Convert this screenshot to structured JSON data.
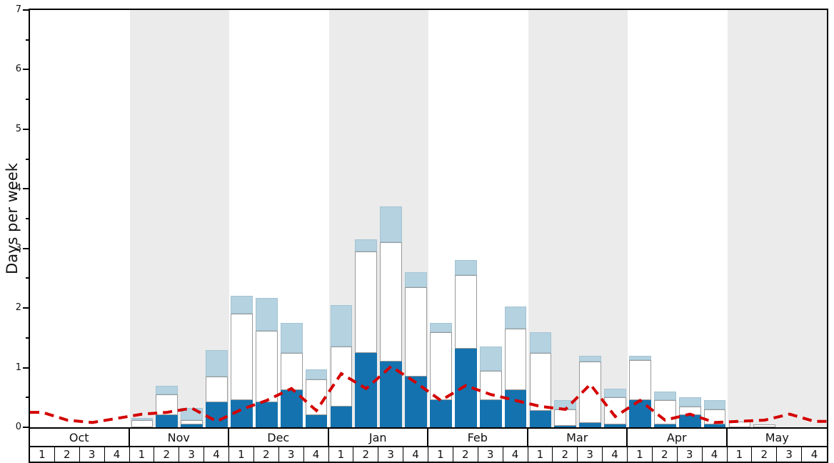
{
  "chart_data": {
    "type": "stacked-bar+line",
    "title": "",
    "ylabel": "Days per week",
    "ylim": [
      0,
      7
    ],
    "yticks": [
      0,
      1,
      2,
      3,
      4,
      5,
      6,
      7
    ],
    "grid": false,
    "months": [
      "Oct",
      "Nov",
      "Dec",
      "Jan",
      "Feb",
      "Mar",
      "Apr",
      "May"
    ],
    "weeks_per_month": 4,
    "week_labels": [
      "1",
      "2",
      "3",
      "4"
    ],
    "band_colors": [
      "#ffffff",
      "#ebebeb"
    ],
    "series": [
      {
        "name": "dark-blue-days",
        "color": "#1473af",
        "border": "#1473af",
        "values": [
          0,
          0,
          0,
          0,
          0,
          0.2,
          0.05,
          0.42,
          0.45,
          0.42,
          0.62,
          0.2,
          0.35,
          1.25,
          1.1,
          0.85,
          0.45,
          1.32,
          0.45,
          0.62,
          0.28,
          0.02,
          0.07,
          0.05,
          0.45,
          0.05,
          0.2,
          0.05,
          0,
          0,
          0,
          0
        ]
      },
      {
        "name": "white-days",
        "color": "#ffffff",
        "border": "#999999",
        "values": [
          0,
          0,
          0,
          0,
          0.12,
          0.35,
          0.07,
          0.43,
          1.45,
          1.2,
          0.63,
          0.6,
          1.0,
          1.7,
          2.0,
          1.5,
          1.15,
          1.23,
          0.5,
          1.03,
          0.97,
          0.28,
          1.03,
          0.45,
          0.68,
          0.4,
          0.15,
          0.25,
          0.1,
          0.05,
          0,
          0
        ]
      },
      {
        "name": "light-blue-days",
        "color": "#b5d2e0",
        "border": "#a3c3d3",
        "values": [
          0,
          0,
          0,
          0,
          0.03,
          0.15,
          0.2,
          0.45,
          0.3,
          0.55,
          0.5,
          0.17,
          0.7,
          0.2,
          0.6,
          0.25,
          0.15,
          0.25,
          0.4,
          0.38,
          0.35,
          0.15,
          0.1,
          0.15,
          0.07,
          0.15,
          0.15,
          0.15,
          0,
          0,
          0,
          0
        ]
      }
    ],
    "line": {
      "name": "red-dashed-trend",
      "color": "#d40000",
      "style": "dashed",
      "width": 4,
      "values": [
        0.25,
        0.12,
        0.08,
        0.15,
        0.22,
        0.25,
        0.32,
        0.1,
        0.3,
        0.45,
        0.65,
        0.28,
        0.9,
        0.65,
        1.02,
        0.75,
        0.45,
        0.7,
        0.55,
        0.45,
        0.35,
        0.3,
        0.72,
        0.18,
        0.45,
        0.12,
        0.22,
        0.08,
        0.1,
        0.12,
        0.22,
        0.1
      ]
    }
  }
}
